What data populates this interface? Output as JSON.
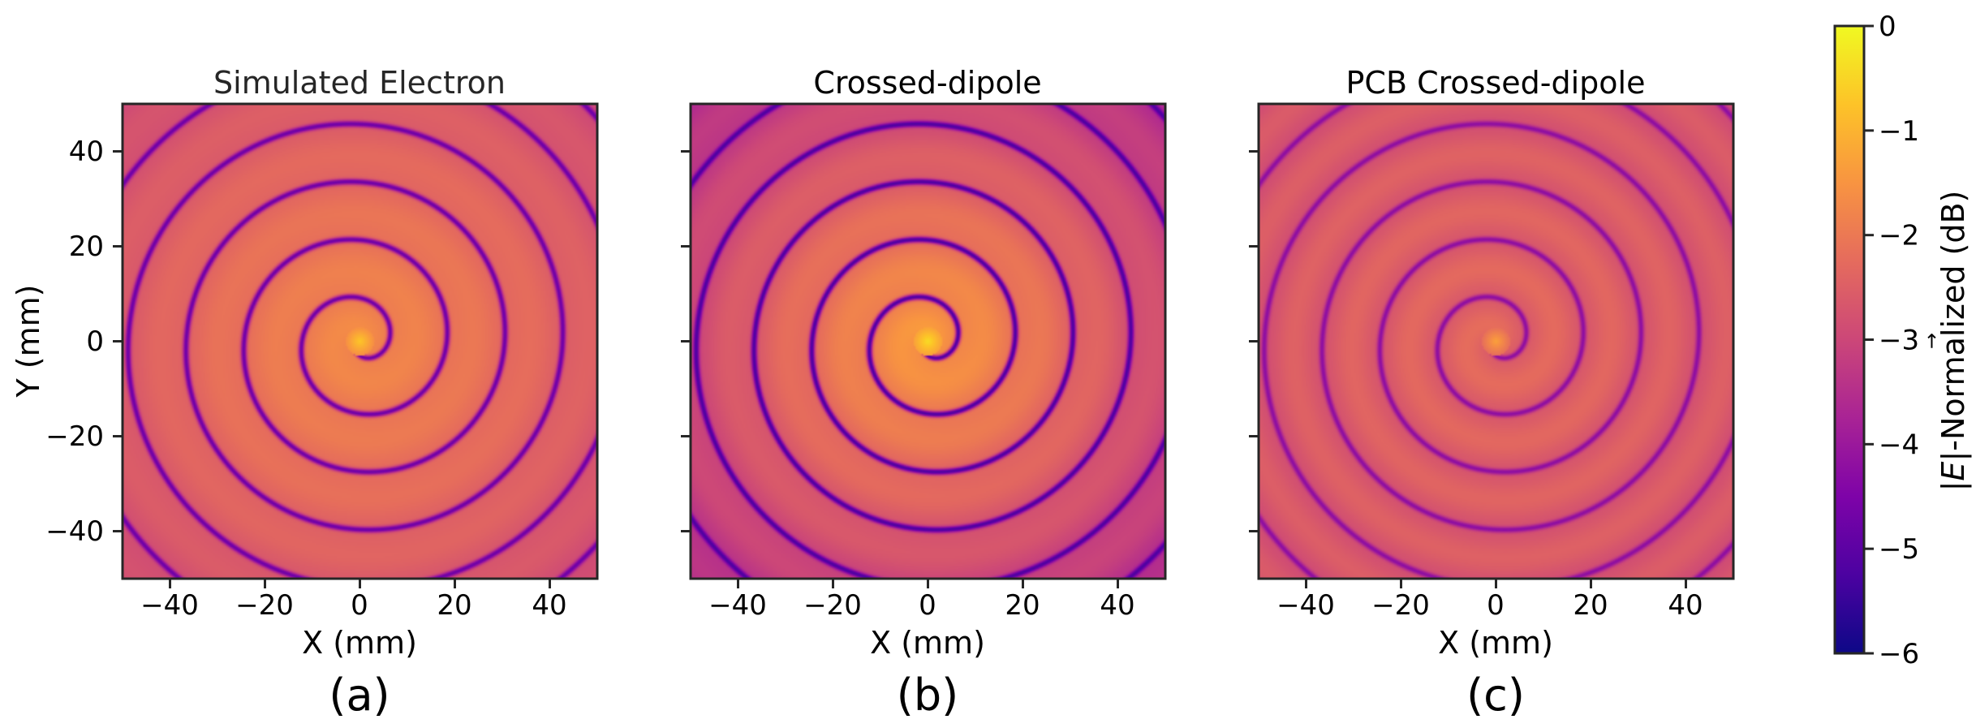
{
  "chart_data": {
    "type": "heatmap",
    "description_note": "Three square field maps of normalized |E| in dB over X-Y plane, two-arm Archimedean spiral pattern",
    "x_range": [
      -50,
      50
    ],
    "y_range": [
      -50,
      50
    ],
    "x_ticks": [
      "−40",
      "−20",
      "0",
      "20",
      "40"
    ],
    "x_tick_values": [
      -40,
      -20,
      0,
      20,
      40
    ],
    "y_ticks": [
      "40",
      "20",
      "0",
      "−20",
      "−40"
    ],
    "y_tick_values": [
      40,
      20,
      0,
      -20,
      -40
    ],
    "xlabel": "X (mm)",
    "ylabel": "Y (mm)",
    "colormap": "plasma",
    "colorbar": {
      "label": "|E|-Normalized (dB)",
      "range": [
        -6,
        0
      ],
      "ticks": [
        "0",
        "−1",
        "−2",
        "−3",
        "−4",
        "−5",
        "−6"
      ],
      "tick_values": [
        0,
        -1,
        -2,
        -3,
        -4,
        -5,
        -6
      ]
    },
    "panels": [
      {
        "title": "Simulated Electron",
        "label": "(a)",
        "spiral_pitch_mm": 12.2,
        "peak_db": -1.6,
        "trough_db": -4.6,
        "edge_db": -2.8,
        "spread": 0.18
      },
      {
        "title": "Crossed-dipole",
        "label": "(b)",
        "spiral_pitch_mm": 12.2,
        "peak_db": -1.3,
        "trough_db": -5.0,
        "edge_db": -3.4,
        "spread": 0.25
      },
      {
        "title": "PCB Crossed-dipole",
        "label": "(c)",
        "spiral_pitch_mm": 12.2,
        "peak_db": -2.2,
        "trough_db": -3.9,
        "edge_db": -2.6,
        "spread": 0.35
      }
    ]
  }
}
